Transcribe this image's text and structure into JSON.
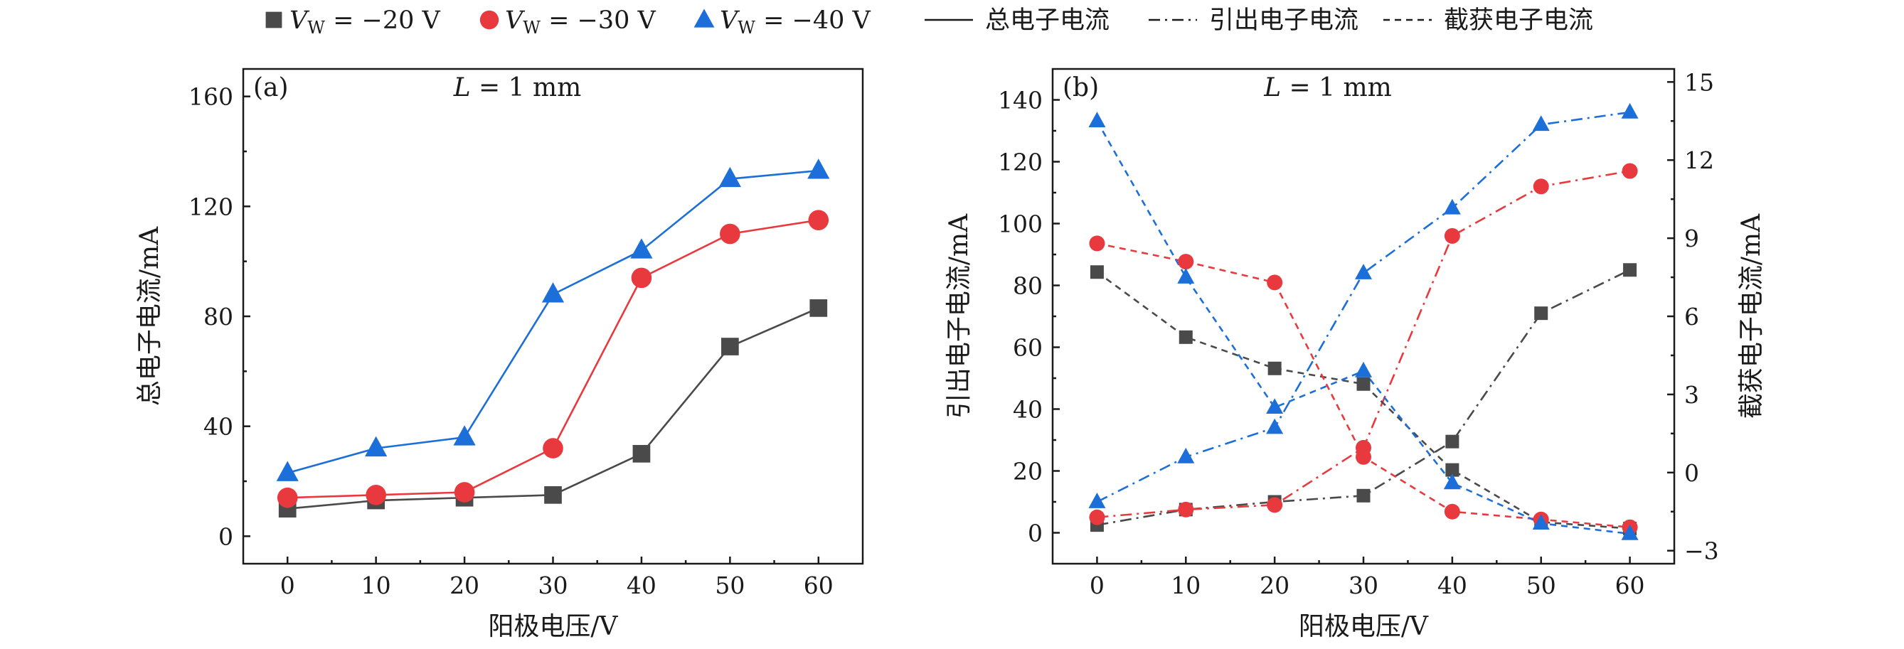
{
  "legend": {
    "series": [
      {
        "symbol": "V",
        "subscript": "W",
        "rest": " = −20 V",
        "color": "#4a4a4a",
        "marker": "square"
      },
      {
        "symbol": "V",
        "subscript": "W",
        "rest": " = −30 V",
        "color": "#e8393f",
        "marker": "circle"
      },
      {
        "symbol": "V",
        "subscript": "W",
        "rest": " = −40 V",
        "color": "#1c6fd8",
        "marker": "triangle"
      }
    ],
    "styles": [
      {
        "label": "总电子电流",
        "dash": "solid"
      },
      {
        "label": "引出电子电流",
        "dash": "dashdot"
      },
      {
        "label": "截获电子电流",
        "dash": "dashed"
      }
    ]
  },
  "chart_data": [
    {
      "type": "line",
      "panel_label": "(a)",
      "annotation": {
        "italic": "L",
        "rest": " = 1 mm"
      },
      "xlabel": "阳极电压/V",
      "ylabel": "总电子电流/mA",
      "x": [
        0,
        10,
        20,
        30,
        40,
        50,
        60
      ],
      "xlim": [
        -5,
        65
      ],
      "ylim": [
        -10,
        170
      ],
      "xticks": [
        0,
        10,
        20,
        30,
        40,
        50,
        60
      ],
      "yticks": [
        0,
        40,
        80,
        120,
        160
      ],
      "series": [
        {
          "name": "V_W = −20 V",
          "line": "solid",
          "color": "#4a4a4a",
          "marker": "square",
          "values": [
            10,
            13,
            14,
            15,
            30,
            69,
            83
          ]
        },
        {
          "name": "V_W = −30 V",
          "line": "solid",
          "color": "#e8393f",
          "marker": "circle",
          "values": [
            14,
            15,
            16,
            32,
            94,
            110,
            115
          ]
        },
        {
          "name": "V_W = −40 V",
          "line": "solid",
          "color": "#1c6fd8",
          "marker": "triangle",
          "values": [
            23,
            32,
            36,
            88,
            104,
            130,
            133
          ]
        }
      ]
    },
    {
      "type": "line",
      "panel_label": "(b)",
      "annotation": {
        "italic": "L",
        "rest": " = 1 mm"
      },
      "xlabel": "阳极电压/V",
      "ylabel": "引出电子电流/mA",
      "ylabel_right": "截获电子电流/mA",
      "x": [
        0,
        10,
        20,
        30,
        40,
        50,
        60
      ],
      "xlim": [
        -5,
        65
      ],
      "ylim": [
        -10,
        150
      ],
      "ylim_right": [
        -3.5,
        15.5
      ],
      "xticks": [
        0,
        10,
        20,
        30,
        40,
        50,
        60
      ],
      "yticks": [
        0,
        20,
        40,
        60,
        80,
        100,
        120,
        140
      ],
      "yticks_right": [
        -3,
        0,
        3,
        6,
        9,
        12,
        15
      ],
      "series": [
        {
          "name": "引出 V_W = −20 V",
          "axis": "left",
          "line": "dashdot",
          "color": "#4a4a4a",
          "marker": "square",
          "values": [
            2.5,
            7.5,
            10,
            12,
            29.5,
            71,
            85
          ]
        },
        {
          "name": "引出 V_W = −30 V",
          "axis": "left",
          "line": "dashdot",
          "color": "#e8393f",
          "marker": "circle",
          "values": [
            5,
            7.5,
            9,
            27.5,
            96,
            112,
            117
          ]
        },
        {
          "name": "引出 V_W = −40 V",
          "axis": "left",
          "line": "dashdot",
          "color": "#1c6fd8",
          "marker": "triangle",
          "values": [
            10,
            24.5,
            34,
            84,
            105,
            132,
            136
          ]
        },
        {
          "name": "截获 V_W = −20 V",
          "axis": "right",
          "line": "dashed",
          "color": "#4a4a4a",
          "marker": "square",
          "values": [
            7.7,
            5.2,
            4.0,
            3.4,
            0.1,
            -1.9,
            -2.15
          ]
        },
        {
          "name": "截获 V_W = −30 V",
          "axis": "right",
          "line": "dashed",
          "color": "#e8393f",
          "marker": "circle",
          "values": [
            8.8,
            8.1,
            7.3,
            0.6,
            -1.5,
            -1.8,
            -2.1
          ]
        },
        {
          "name": "截获 V_W = −40 V",
          "axis": "right",
          "line": "dashed",
          "color": "#1c6fd8",
          "marker": "triangle",
          "values": [
            13.5,
            7.5,
            2.5,
            3.9,
            -0.4,
            -1.95,
            -2.35
          ]
        }
      ]
    }
  ]
}
